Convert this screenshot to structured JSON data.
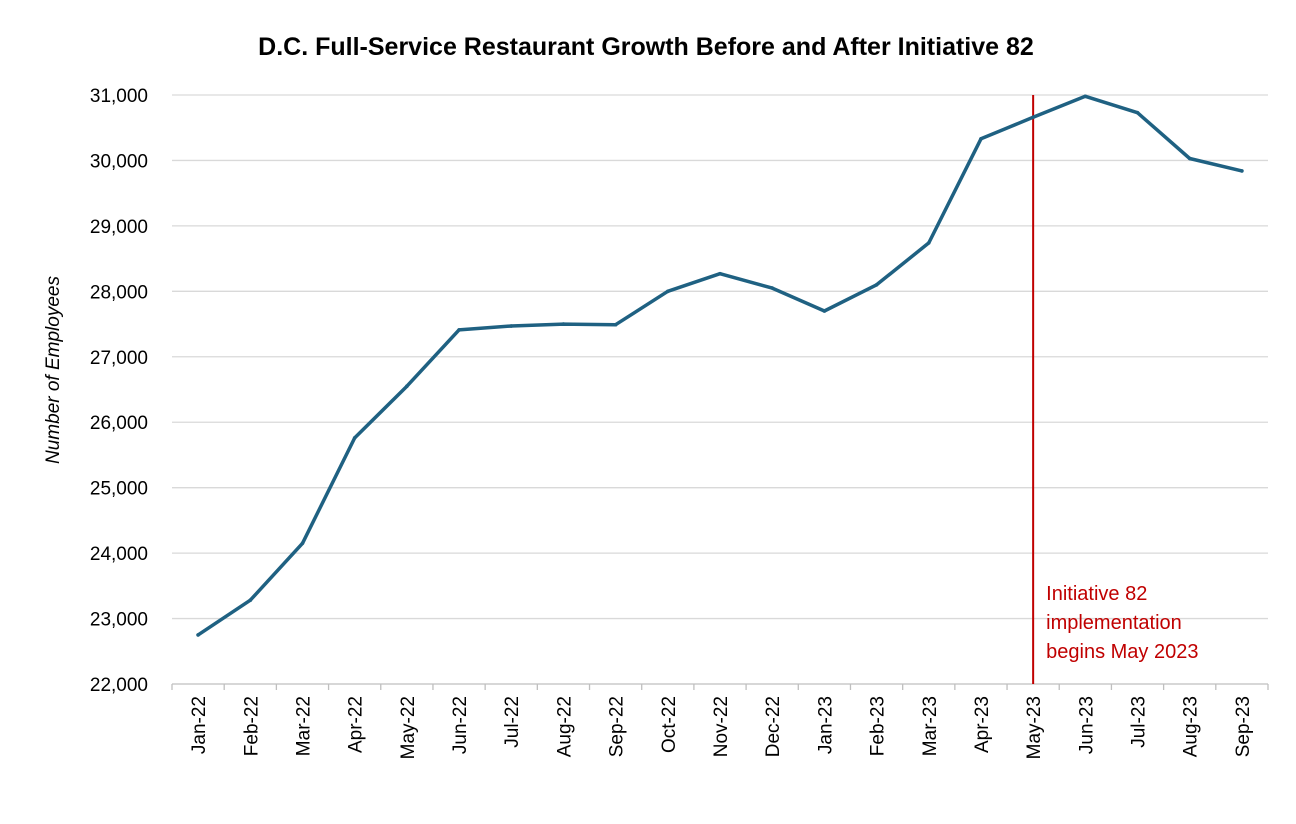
{
  "chart_data": {
    "type": "line",
    "title": "D.C. Full-Service Restaurant Growth Before and After Initiative 82",
    "xlabel": "",
    "ylabel": "Number of Employees",
    "categories": [
      "Jan-22",
      "Feb-22",
      "Mar-22",
      "Apr-22",
      "May-22",
      "Jun-22",
      "Jul-22",
      "Aug-22",
      "Sep-22",
      "Oct-22",
      "Nov-22",
      "Dec-22",
      "Jan-23",
      "Feb-23",
      "Mar-23",
      "Apr-23",
      "May-23",
      "Jun-23",
      "Jul-23",
      "Aug-23",
      "Sep-23"
    ],
    "series": [
      {
        "values": [
          22750,
          23280,
          24150,
          25760,
          26550,
          27410,
          27470,
          27500,
          27490,
          28000,
          28270,
          28050,
          27700,
          28100,
          28740,
          30330,
          30660,
          30980,
          30730,
          30030,
          29840
        ],
        "color": "#1f6182"
      }
    ],
    "ylim": [
      22000,
      31000
    ],
    "yticks": [
      22000,
      23000,
      24000,
      25000,
      26000,
      27000,
      28000,
      29000,
      30000,
      31000
    ],
    "ytick_labels": [
      "22,000",
      "23,000",
      "24,000",
      "25,000",
      "26,000",
      "27,000",
      "28,000",
      "29,000",
      "30,000",
      "31,000"
    ],
    "grid": true,
    "legend": "none",
    "annotations": [
      {
        "category": "May-23",
        "lines": [
          "Initiative 82",
          "implementation",
          "begins May 2023"
        ],
        "color": "#c00000"
      }
    ]
  }
}
